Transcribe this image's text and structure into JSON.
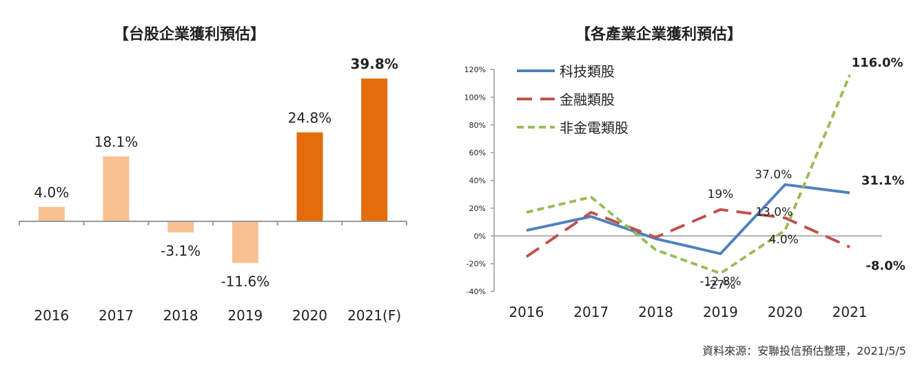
{
  "chart_data": [
    {
      "type": "bar",
      "title": "【台股企業獲利預估】",
      "categories": [
        "2016",
        "2017",
        "2018",
        "2019",
        "2020",
        "2021(F)"
      ],
      "values": [
        4.0,
        18.1,
        -3.1,
        -11.6,
        24.8,
        39.8
      ],
      "data_labels": [
        "4.0%",
        "18.1%",
        "-3.1%",
        "-11.6%",
        "24.8%",
        "39.8%"
      ],
      "colors": [
        "#f9c192",
        "#f9c192",
        "#f9c192",
        "#f9c192",
        "#e46c0a",
        "#e46c0a"
      ],
      "ylim": [
        -14,
        42
      ],
      "grid": false
    },
    {
      "type": "line",
      "title": "【各產業企業獲利預估】",
      "categories": [
        "2016",
        "2017",
        "2018",
        "2019",
        "2020",
        "2021"
      ],
      "yticks": [
        "120%",
        "100%",
        "80%",
        "60%",
        "40%",
        "20%",
        "0%",
        "-20%",
        "-40%"
      ],
      "ylim": [
        -40,
        120
      ],
      "legend": "top-left",
      "series": [
        {
          "name": "科技類股",
          "values": [
            4,
            14,
            -2,
            -12.8,
            37.0,
            31.1
          ],
          "color": "#4f81bd",
          "dash": "solid",
          "labels": [
            null,
            null,
            null,
            "-12.8%",
            "37.0%",
            "31.1%"
          ]
        },
        {
          "name": "金融類股",
          "values": [
            -15,
            17,
            -1,
            19,
            13.0,
            -8.0
          ],
          "color": "#c0504d",
          "dash": "long",
          "labels": [
            null,
            null,
            null,
            "19%",
            "13.0%",
            "-8.0%"
          ]
        },
        {
          "name": "非金電類股",
          "values": [
            17,
            28,
            -10,
            -27,
            4.0,
            116.0
          ],
          "color": "#9bbb59",
          "dash": "short",
          "labels": [
            null,
            null,
            null,
            "-27%",
            "4.0%",
            "116.0%"
          ]
        }
      ]
    }
  ],
  "source": "資料來源：安聯投信預估整理，2021/5/5"
}
